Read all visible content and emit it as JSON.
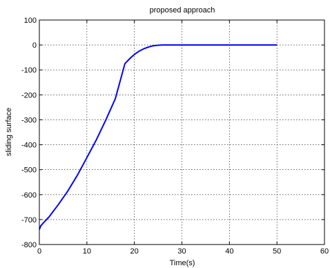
{
  "chart_data": {
    "type": "line",
    "title": "proposed approach",
    "xlabel": "Time(s)",
    "ylabel": "sliding surface",
    "xlim": [
      0,
      60
    ],
    "ylim": [
      -800,
      100
    ],
    "x_ticks": [
      0,
      10,
      20,
      30,
      40,
      50,
      60
    ],
    "y_ticks": [
      100,
      0,
      -100,
      -200,
      -300,
      -400,
      -500,
      -600,
      -700,
      -800
    ],
    "x_tick_labels": [
      "0",
      "10",
      "20",
      "30",
      "40",
      "50",
      "60"
    ],
    "y_tick_labels": [
      "100",
      "0",
      "-100",
      "-200",
      "-300",
      "-400",
      "-500",
      "-600",
      "-700",
      "-800"
    ],
    "grid": true,
    "line_color": "#0000ff",
    "series": [
      {
        "x": [
          0,
          0.3,
          1,
          2,
          4,
          6,
          8,
          10,
          12,
          14,
          16,
          18,
          19,
          20,
          21,
          22,
          23,
          24,
          25,
          26,
          30,
          40,
          50
        ],
        "y": [
          -740,
          -725,
          -710,
          -690,
          -640,
          -585,
          -522,
          -452,
          -380,
          -300,
          -215,
          -75,
          -55,
          -38,
          -25,
          -15,
          -8,
          -3,
          -1,
          0,
          0,
          0,
          0
        ]
      }
    ]
  }
}
